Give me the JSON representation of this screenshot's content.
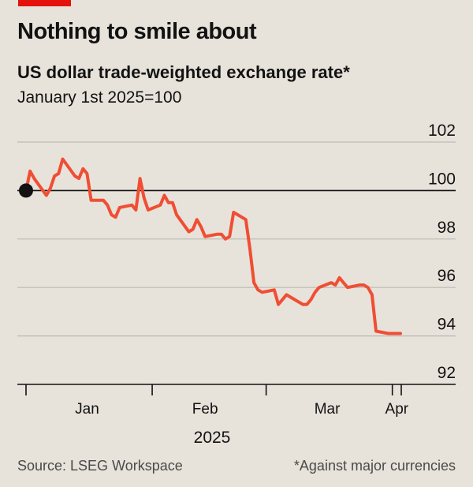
{
  "header": {
    "title": "Nothing to smile about",
    "subtitle": "US dollar trade-weighted exchange rate*",
    "subsubtitle": "January 1st 2025=100"
  },
  "footer": {
    "source": "Source: LSEG Workspace",
    "note": "*Against major currencies"
  },
  "colors": {
    "background": "#e7e3da",
    "series": "#f04e34",
    "grid": "#bdbab3",
    "baseline": "#121212",
    "accent": "#e3120b"
  },
  "chart_data": {
    "type": "line",
    "ylim": [
      92,
      102
    ],
    "yticks": [
      92,
      94,
      96,
      98,
      100,
      102
    ],
    "reference_line": 100,
    "grid": true,
    "xlabel": "2025",
    "x_month_labels": [
      "Jan",
      "Feb",
      "Mar",
      "Apr"
    ],
    "series": [
      {
        "start_marker": true,
        "x": [
          "2025-01-01",
          "2025-01-02",
          "2025-01-03",
          "2025-01-06",
          "2025-01-07",
          "2025-01-08",
          "2025-01-09",
          "2025-01-10",
          "2025-01-13",
          "2025-01-14",
          "2025-01-15",
          "2025-01-16",
          "2025-01-17",
          "2025-01-20",
          "2025-01-21",
          "2025-01-22",
          "2025-01-23",
          "2025-01-24",
          "2025-01-27",
          "2025-01-28",
          "2025-01-29",
          "2025-01-30",
          "2025-01-31",
          "2025-02-03",
          "2025-02-04",
          "2025-02-05",
          "2025-02-06",
          "2025-02-07",
          "2025-02-10",
          "2025-02-11",
          "2025-02-12",
          "2025-02-13",
          "2025-02-14",
          "2025-02-17",
          "2025-02-18",
          "2025-02-19",
          "2025-02-20",
          "2025-02-21",
          "2025-02-24",
          "2025-02-25",
          "2025-02-26",
          "2025-02-27",
          "2025-02-28",
          "2025-03-03",
          "2025-03-04",
          "2025-03-05",
          "2025-03-06",
          "2025-03-07",
          "2025-03-10",
          "2025-03-11",
          "2025-03-12",
          "2025-03-13",
          "2025-03-14",
          "2025-03-17",
          "2025-03-18",
          "2025-03-19",
          "2025-03-20",
          "2025-03-21",
          "2025-03-24",
          "2025-03-25",
          "2025-03-26",
          "2025-03-27",
          "2025-03-28",
          "2025-03-31",
          "2025-04-01",
          "2025-04-02",
          "2025-04-03"
        ],
        "y": [
          100.0,
          100.8,
          100.5,
          99.8,
          100.1,
          100.6,
          100.7,
          101.3,
          100.6,
          100.5,
          100.9,
          100.7,
          99.6,
          99.6,
          99.4,
          99.0,
          98.9,
          99.3,
          99.4,
          99.2,
          100.5,
          99.7,
          99.2,
          99.4,
          99.8,
          99.5,
          99.5,
          99.0,
          98.3,
          98.4,
          98.8,
          98.5,
          98.1,
          98.2,
          98.2,
          98.0,
          98.1,
          99.1,
          98.8,
          97.6,
          96.2,
          95.9,
          95.8,
          95.9,
          95.3,
          95.5,
          95.7,
          95.6,
          95.3,
          95.3,
          95.5,
          95.8,
          96.0,
          96.2,
          96.1,
          96.4,
          96.2,
          96.0,
          96.1,
          96.1,
          96.0,
          95.7,
          94.2,
          94.1,
          94.1,
          94.1,
          94.1
        ]
      }
    ]
  }
}
